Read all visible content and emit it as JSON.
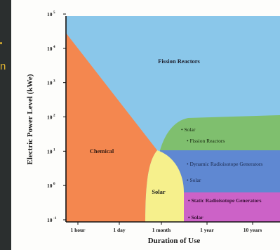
{
  "left_edge_text": "n",
  "chart_data": {
    "type": "area",
    "title": "",
    "xlabel": "Duration of Use",
    "ylabel": "Electric Power Level (kWe)",
    "y_scale": "log10",
    "ylim_log": [
      -1,
      5
    ],
    "x_ticks": [
      "1 hour",
      "1 day",
      "1 month",
      "1 year",
      "10 years"
    ],
    "y_tick_labels": [
      {
        "base": "10",
        "exp": "5"
      },
      {
        "base": "10",
        "exp": "4"
      },
      {
        "base": "10",
        "exp": "3"
      },
      {
        "base": "10",
        "exp": "2"
      },
      {
        "base": "10",
        "exp": "1"
      },
      {
        "base": "10",
        "exp": "0"
      },
      {
        "base": "10",
        "exp": "-1"
      }
    ],
    "regions": [
      {
        "label": "Fission Reactors",
        "color": "#8ac7ea"
      },
      {
        "label": "Chemical",
        "color": "#f4874f"
      },
      {
        "label": "Solar",
        "color": "#f6f08c"
      },
      {
        "label": "Solar + Fission Reactors",
        "color": "#7fbf6e",
        "bullets": [
          "Solar",
          "Fission Reactors"
        ]
      },
      {
        "label": "Dynamic Radioisotope Generators + Solar",
        "color": "#5f88d2",
        "bullets": [
          "Dynamic Radioisotope Generators",
          "Solar"
        ]
      },
      {
        "label": "Static Radioisotope Generators + Solar",
        "color": "#cc62c7",
        "bullets": [
          "Static Radioisotope Generators",
          "Solar"
        ]
      }
    ]
  }
}
